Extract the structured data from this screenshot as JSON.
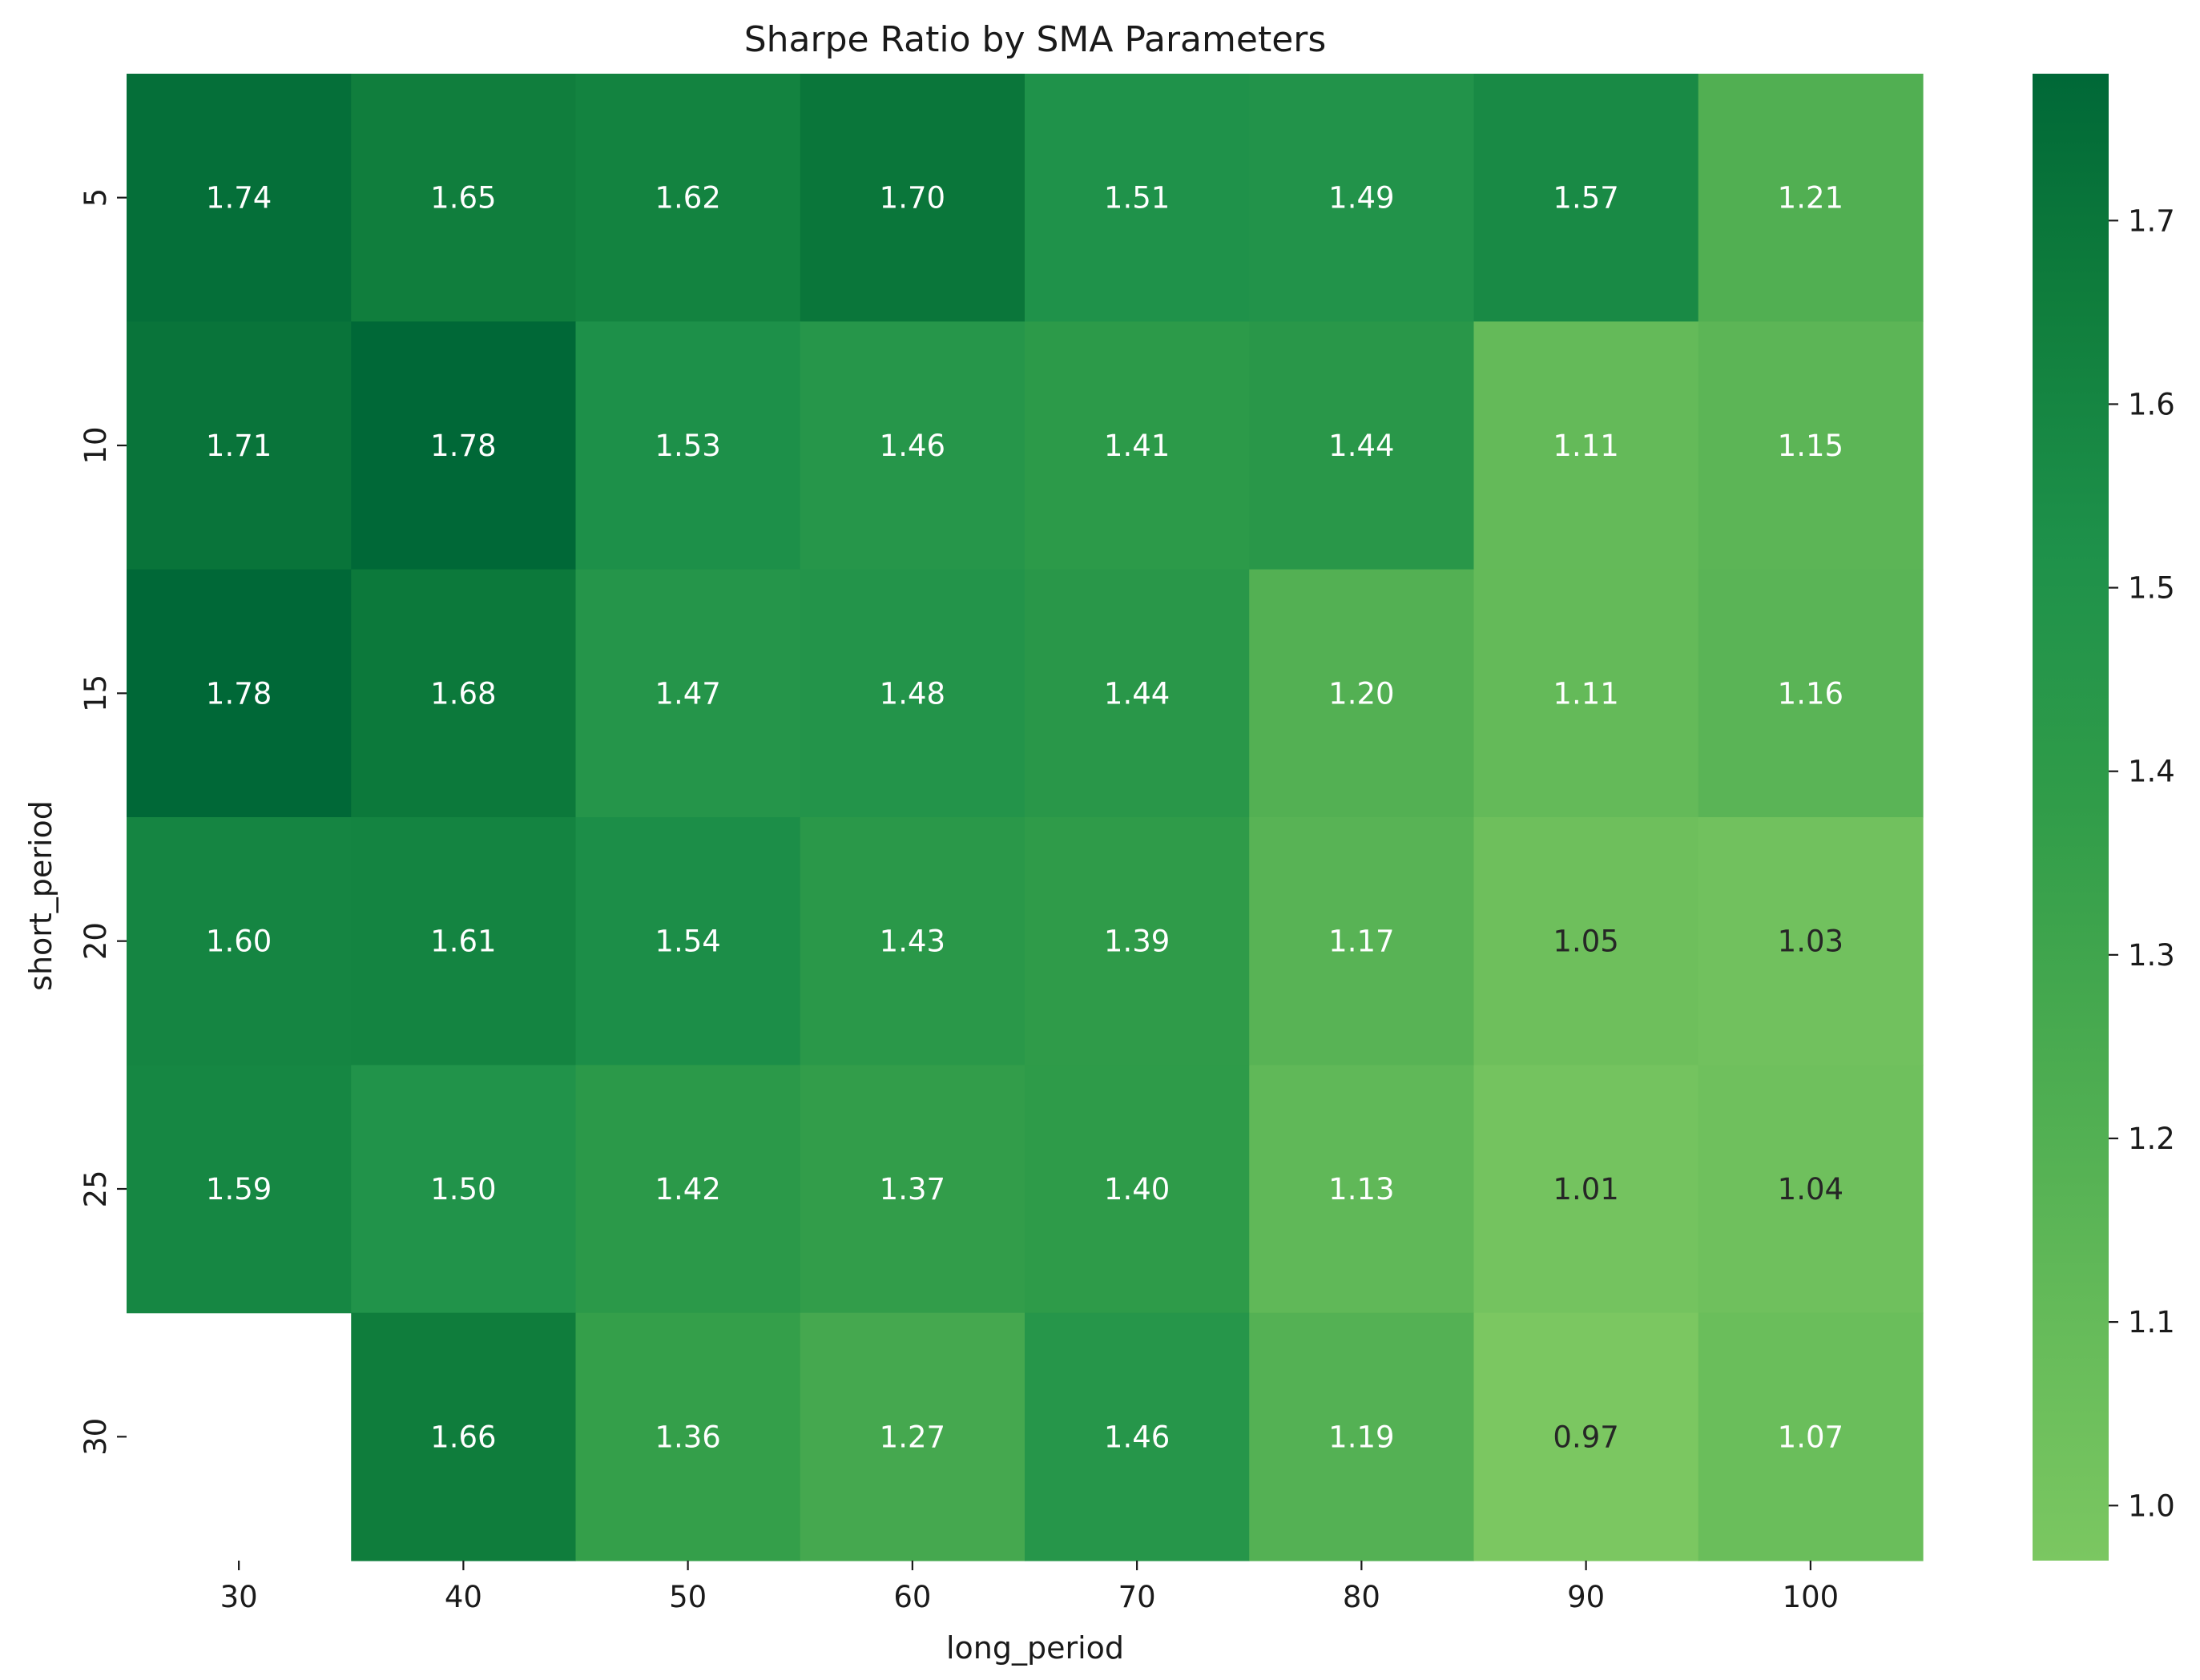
{
  "chart_data": {
    "type": "heatmap",
    "title": "Sharpe Ratio by SMA Parameters",
    "xlabel": "long_period",
    "ylabel": "short_period",
    "x_categories": [
      "30",
      "40",
      "50",
      "60",
      "70",
      "80",
      "90",
      "100"
    ],
    "y_categories": [
      "5",
      "10",
      "15",
      "20",
      "25",
      "30"
    ],
    "values": [
      [
        1.74,
        1.65,
        1.62,
        1.7,
        1.51,
        1.49,
        1.57,
        1.21
      ],
      [
        1.71,
        1.78,
        1.53,
        1.46,
        1.41,
        1.44,
        1.11,
        1.15
      ],
      [
        1.78,
        1.68,
        1.47,
        1.48,
        1.44,
        1.2,
        1.11,
        1.16
      ],
      [
        1.6,
        1.61,
        1.54,
        1.43,
        1.39,
        1.17,
        1.05,
        1.03
      ],
      [
        1.59,
        1.5,
        1.42,
        1.37,
        1.4,
        1.13,
        1.01,
        1.04
      ],
      [
        null,
        1.66,
        1.36,
        1.27,
        1.46,
        1.19,
        0.97,
        1.07
      ]
    ],
    "cell_labels": [
      [
        "1.74",
        "1.65",
        "1.62",
        "1.70",
        "1.51",
        "1.49",
        "1.57",
        "1.21"
      ],
      [
        "1.71",
        "1.78",
        "1.53",
        "1.46",
        "1.41",
        "1.44",
        "1.11",
        "1.15"
      ],
      [
        "1.78",
        "1.68",
        "1.47",
        "1.48",
        "1.44",
        "1.20",
        "1.11",
        "1.16"
      ],
      [
        "1.60",
        "1.61",
        "1.54",
        "1.43",
        "1.39",
        "1.17",
        "1.05",
        "1.03"
      ],
      [
        "1.59",
        "1.50",
        "1.42",
        "1.37",
        "1.40",
        "1.13",
        "1.01",
        "1.04"
      ],
      [
        "",
        "1.66",
        "1.36",
        "1.27",
        "1.46",
        "1.19",
        "0.97",
        "1.07"
      ]
    ],
    "colorbar": {
      "vmin": 0.97,
      "vmax": 1.78,
      "ticks": [
        "1.0",
        "1.1",
        "1.2",
        "1.3",
        "1.4",
        "1.5",
        "1.6",
        "1.7"
      ],
      "low_color": "#7bc761",
      "high_color": "#006837"
    },
    "grid": false
  }
}
